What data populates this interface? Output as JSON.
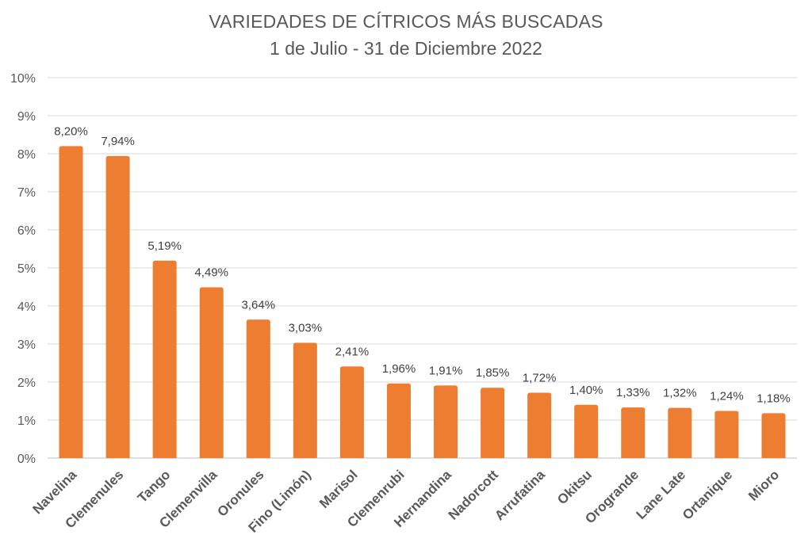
{
  "chart_data": {
    "type": "bar",
    "title": "VARIEDADES DE CÍTRICOS MÁS BUSCADAS",
    "subtitle": "1 de Julio - 31 de Diciembre 2022",
    "categories": [
      "Navelina",
      "Clemenules",
      "Tango",
      "Clemenvilla",
      "Oronules",
      "Fino (Limón)",
      "Marisol",
      "Clemenrubi",
      "Hernandina",
      "Nadorcott",
      "Arrufatina",
      "Okitsu",
      "Orogrande",
      "Lane Late",
      "Ortanique",
      "Mioro"
    ],
    "values": [
      8.2,
      7.94,
      5.19,
      4.49,
      3.64,
      3.03,
      2.41,
      1.96,
      1.91,
      1.85,
      1.72,
      1.4,
      1.33,
      1.32,
      1.24,
      1.18
    ],
    "data_labels": [
      "8,20%",
      "7,94%",
      "5,19%",
      "4,49%",
      "3,64%",
      "3,03%",
      "2,41%",
      "1,96%",
      "1,91%",
      "1,85%",
      "1,72%",
      "1,40%",
      "1,33%",
      "1,32%",
      "1,24%",
      "1,18%"
    ],
    "ylim": [
      0,
      10
    ],
    "y_ticks": [
      "0%",
      "1%",
      "2%",
      "3%",
      "4%",
      "5%",
      "6%",
      "7%",
      "8%",
      "9%",
      "10%"
    ],
    "grid": true,
    "legend": "none",
    "bar_color": "#ED7D31"
  }
}
